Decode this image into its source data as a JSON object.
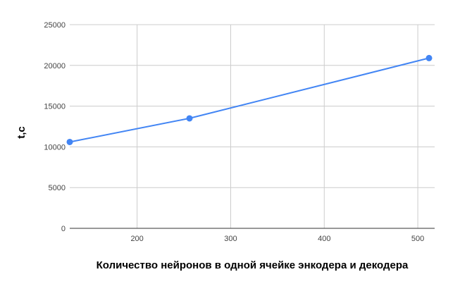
{
  "chart_data": {
    "type": "line",
    "title": "",
    "xlabel": "Количество нейронов в  одной ячейке энкодера и декодера",
    "ylabel": "t,c",
    "x": [
      128,
      256,
      512
    ],
    "series": [
      {
        "name": "",
        "values": [
          10600,
          13500,
          20900
        ],
        "color": "#4285f4"
      }
    ],
    "xlim": [
      128,
      518
    ],
    "ylim": [
      0,
      25000
    ],
    "xticks": [
      200,
      300,
      400,
      500
    ],
    "yticks": [
      0,
      5000,
      10000,
      15000,
      20000,
      25000
    ],
    "xtick_labels": [
      "200",
      "300",
      "400",
      "500"
    ],
    "ytick_labels": [
      "0",
      "5000",
      "10000",
      "15000",
      "20000",
      "25000"
    ],
    "grid": true,
    "legend": "none"
  }
}
